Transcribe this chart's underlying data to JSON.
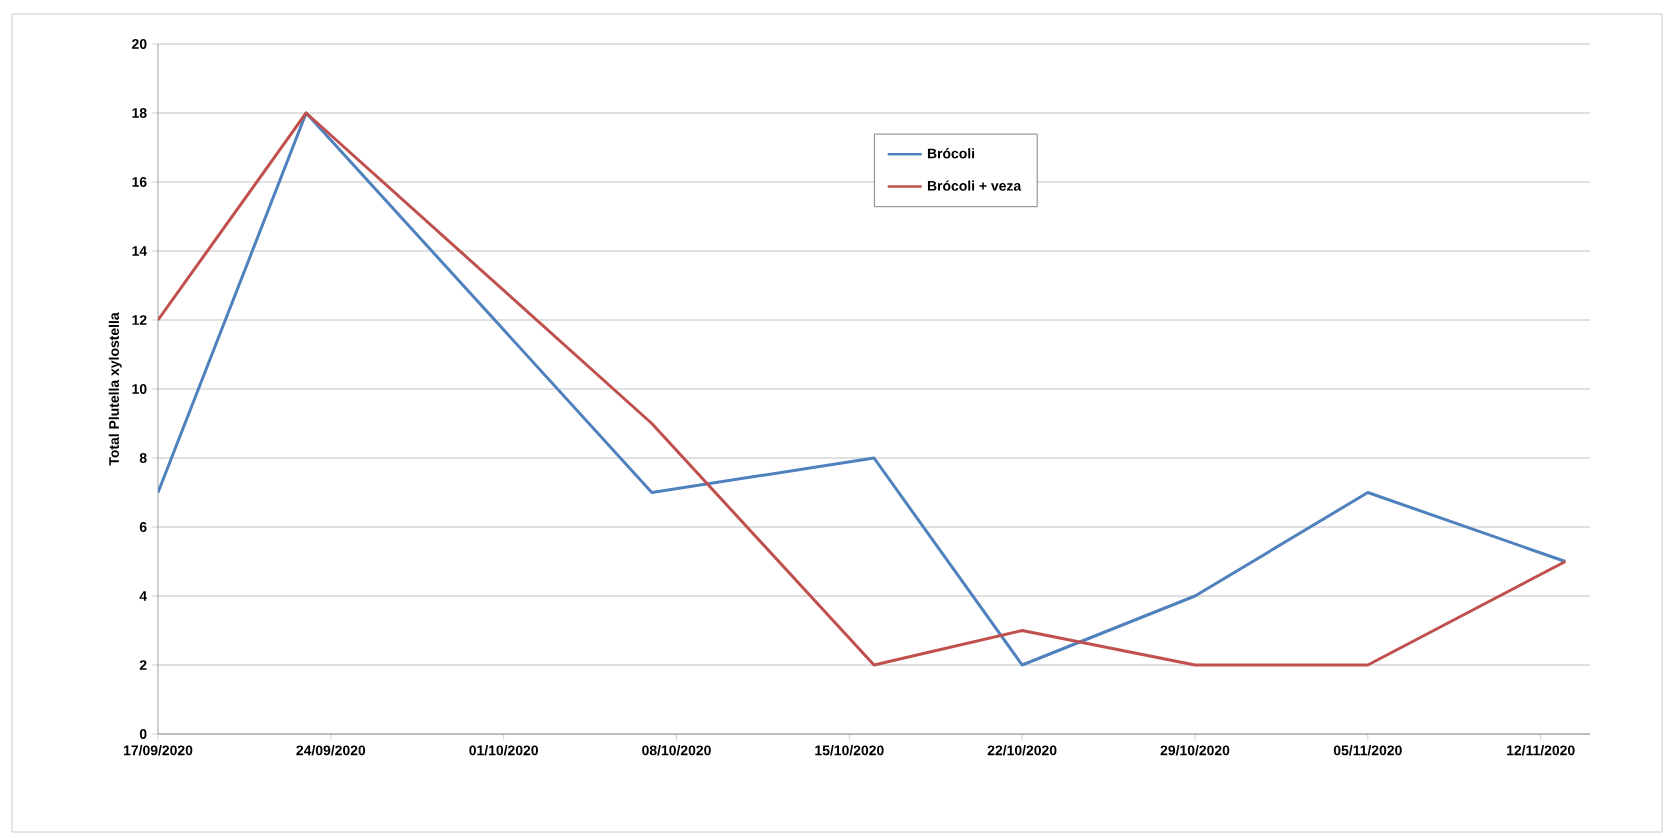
{
  "chart_data": {
    "type": "line",
    "ylabel": "Total Plutella xylostella",
    "x": [
      "2020-09-17",
      "2020-09-23",
      "2020-10-07",
      "2020-10-16",
      "2020-10-22",
      "2020-10-29",
      "2020-11-05",
      "2020-11-13"
    ],
    "series": [
      {
        "name": "Brócoli",
        "color": "#4f81bd",
        "values": [
          7,
          18,
          7,
          8,
          2,
          4,
          7,
          5
        ]
      },
      {
        "name": "Brócoli + veza",
        "color": "#c0504d",
        "values": [
          12,
          18,
          9,
          2,
          3,
          2,
          2,
          5
        ]
      }
    ],
    "xlim": [
      "2020-09-17",
      "2020-11-14"
    ],
    "xticks": [
      {
        "value": "2020-09-17",
        "label": "17/09/2020"
      },
      {
        "value": "2020-09-24",
        "label": "24/09/2020"
      },
      {
        "value": "2020-10-01",
        "label": "01/10/2020"
      },
      {
        "value": "2020-10-08",
        "label": "08/10/2020"
      },
      {
        "value": "2020-10-15",
        "label": "15/10/2020"
      },
      {
        "value": "2020-10-22",
        "label": "22/10/2020"
      },
      {
        "value": "2020-10-29",
        "label": "29/10/2020"
      },
      {
        "value": "2020-11-05",
        "label": "05/11/2020"
      },
      {
        "value": "2020-11-12",
        "label": "12/11/2020"
      }
    ],
    "ylim": [
      0,
      20
    ],
    "yticks": [
      0,
      2,
      4,
      6,
      8,
      10,
      12,
      14,
      16,
      18,
      20
    ],
    "grid": "y",
    "legend": "top",
    "marker": "none",
    "line_style": "solid"
  }
}
